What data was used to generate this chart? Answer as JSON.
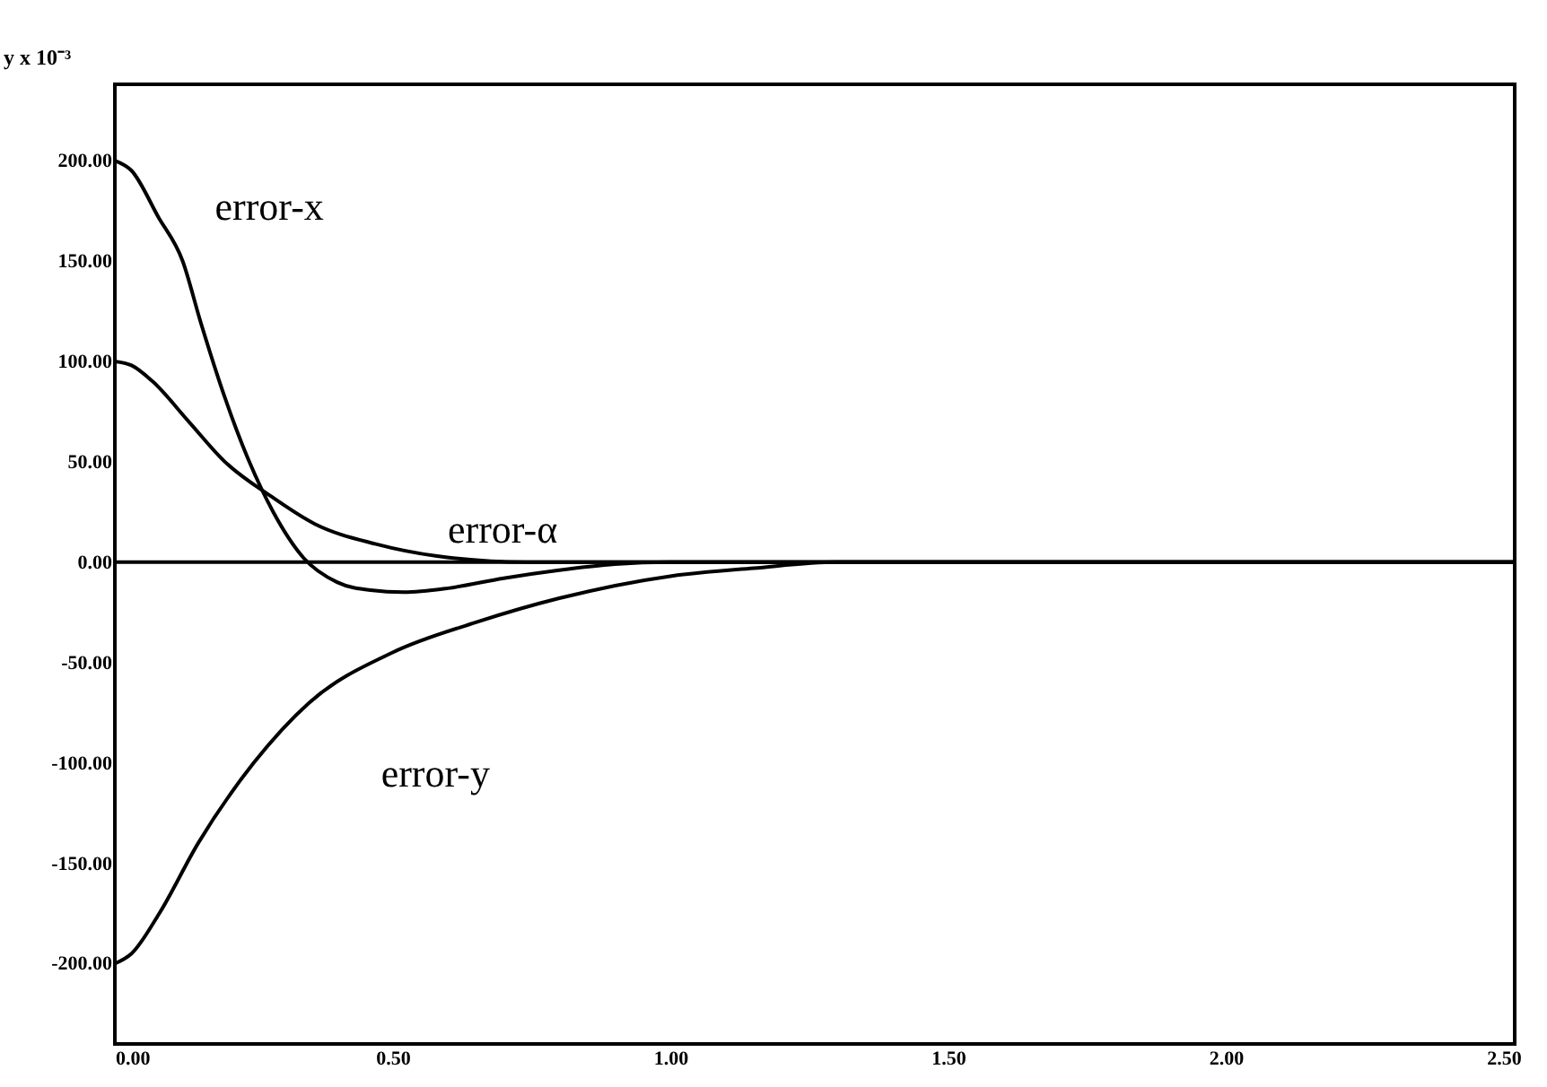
{
  "chart_data": {
    "type": "line",
    "ylabel": "y x 10⁻³",
    "xlim": [
      0,
      2.52
    ],
    "ylim": [
      -240,
      238
    ],
    "xticks": [
      {
        "value": 0,
        "label": "0.00"
      },
      {
        "value": 0.5,
        "label": "0.50"
      },
      {
        "value": 1,
        "label": "1.00"
      },
      {
        "value": 1.5,
        "label": "1.50"
      },
      {
        "value": 2,
        "label": "2.00"
      },
      {
        "value": 2.5,
        "label": "2.50"
      }
    ],
    "yticks": [
      {
        "value": -200,
        "label": "-200.00"
      },
      {
        "value": -150,
        "label": "-150.00"
      },
      {
        "value": -100,
        "label": "-100.00"
      },
      {
        "value": -50,
        "label": "-50.00"
      },
      {
        "value": 0,
        "label": "0.00"
      },
      {
        "value": 50,
        "label": "50.00"
      },
      {
        "value": 100,
        "label": "100.00"
      },
      {
        "value": 150,
        "label": "150.00"
      },
      {
        "value": 200,
        "label": "200.00"
      }
    ],
    "grid": false,
    "marker": "none",
    "line_style": "solid",
    "ref_lines": [
      {
        "axis": "y",
        "value": 0,
        "color": "#000000"
      }
    ],
    "series": [
      {
        "name": "error-x",
        "color": "#000000",
        "x": [
          0,
          0.03,
          0.078,
          0.122,
          0.155,
          0.198,
          0.242,
          0.285,
          0.34,
          0.4,
          0.46,
          0.52,
          0.6,
          0.7,
          0.8,
          0.9,
          1.0,
          1.2,
          1.5,
          2.0,
          2.52
        ],
        "values": [
          200,
          195,
          172,
          150,
          119,
          82,
          50,
          25,
          2,
          -10,
          -14,
          -15,
          -13,
          -8,
          -4,
          -1,
          0,
          0,
          0,
          0,
          0
        ]
      },
      {
        "name": "error-α",
        "color": "#000000",
        "x": [
          0,
          0.03,
          0.068,
          0.133,
          0.198,
          0.28,
          0.36,
          0.47,
          0.58,
          0.74,
          0.9,
          1.2,
          1.5,
          2.0,
          2.52
        ],
        "values": [
          100,
          98,
          90,
          70,
          50,
          33,
          19,
          9,
          3,
          0,
          0,
          0,
          0,
          0,
          0
        ]
      },
      {
        "name": "error-y",
        "color": "#000000",
        "x": [
          0,
          0.03,
          0.08,
          0.15,
          0.25,
          0.35,
          0.5,
          0.65,
          0.8,
          1.0,
          1.15,
          1.3,
          1.5,
          2.0,
          2.52
        ],
        "values": [
          -200,
          -195,
          -175,
          -140,
          -100,
          -70,
          -45,
          -30,
          -18,
          -7,
          -3,
          0,
          0,
          0,
          0
        ]
      }
    ]
  }
}
